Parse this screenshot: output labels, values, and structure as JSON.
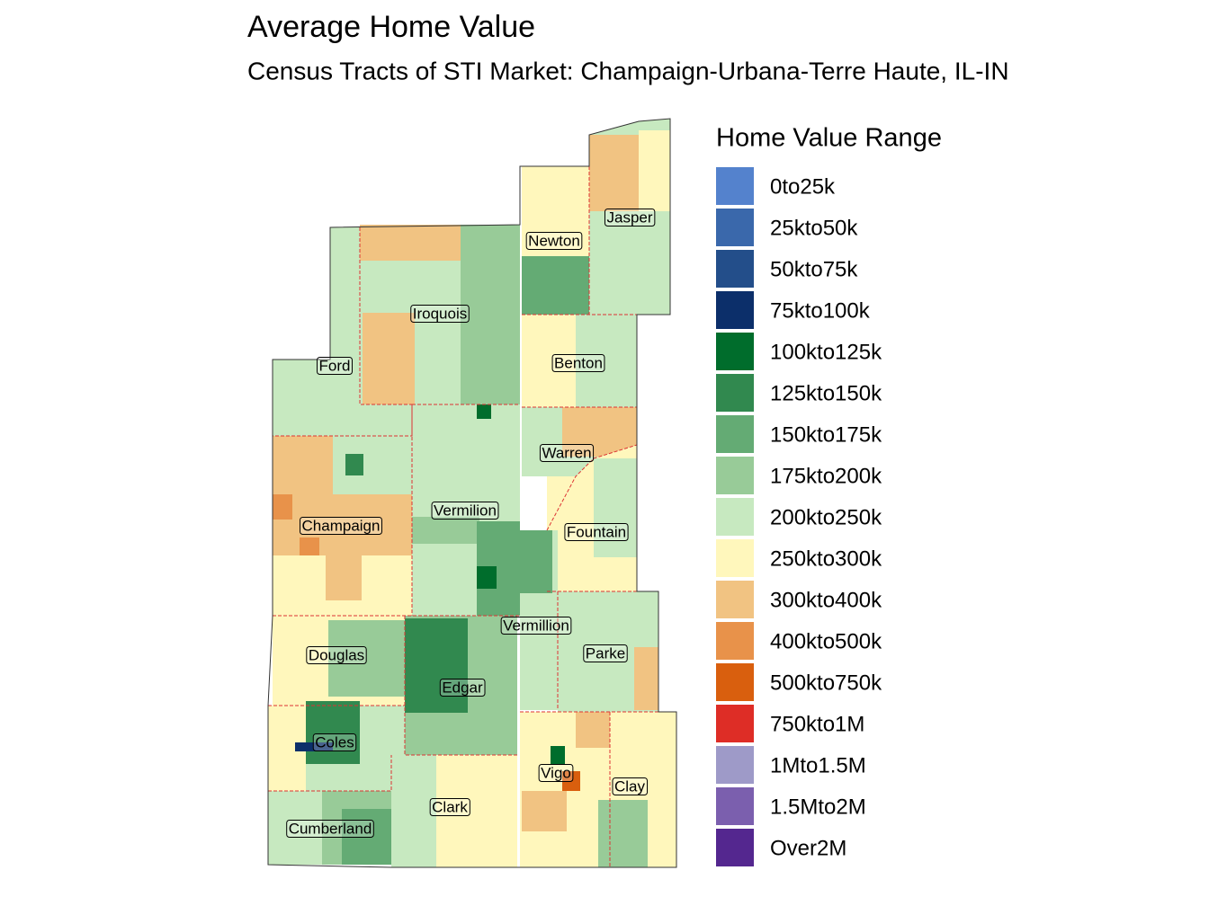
{
  "header": {
    "title": "Average Home Value",
    "subtitle": "Census Tracts of STI Market: Champaign-Urbana-Terre Haute, IL-IN"
  },
  "legend": {
    "title": "Home Value Range",
    "items": [
      {
        "label": "0to25k",
        "color": "#5482cd"
      },
      {
        "label": "25kto50k",
        "color": "#3a68ab"
      },
      {
        "label": "50kto75k",
        "color": "#234e8a"
      },
      {
        "label": "75kto100k",
        "color": "#0c2f6a"
      },
      {
        "label": "100kto125k",
        "color": "#006d2c"
      },
      {
        "label": "125kto150k",
        "color": "#31894f"
      },
      {
        "label": "150kto175k",
        "color": "#64ab74"
      },
      {
        "label": "175kto200k",
        "color": "#98cb98"
      },
      {
        "label": "200kto250k",
        "color": "#c7e9c0"
      },
      {
        "label": "250kto300k",
        "color": "#fff7bc"
      },
      {
        "label": "300kto400k",
        "color": "#f1c382"
      },
      {
        "label": "400kto500k",
        "color": "#e8924a"
      },
      {
        "label": "500kto750k",
        "color": "#d95f0e"
      },
      {
        "label": "750kto1M",
        "color": "#de2d26"
      },
      {
        "label": "1Mto1.5M",
        "color": "#9e9ac8"
      },
      {
        "label": "1.5Mto2M",
        "color": "#7b5fae"
      },
      {
        "label": "Over2M",
        "color": "#54278f"
      }
    ]
  },
  "counties": [
    {
      "label": "Jasper"
    },
    {
      "label": "Newton"
    },
    {
      "label": "Iroquois"
    },
    {
      "label": "Ford"
    },
    {
      "label": "Benton"
    },
    {
      "label": "Warren"
    },
    {
      "label": "Vermilion"
    },
    {
      "label": "Champaign"
    },
    {
      "label": "Fountain"
    },
    {
      "label": "Vermillion"
    },
    {
      "label": "Parke"
    },
    {
      "label": "Douglas"
    },
    {
      "label": "Edgar"
    },
    {
      "label": "Coles"
    },
    {
      "label": "Vigo"
    },
    {
      "label": "Clay"
    },
    {
      "label": "Clark"
    },
    {
      "label": "Cumberland"
    }
  ]
}
